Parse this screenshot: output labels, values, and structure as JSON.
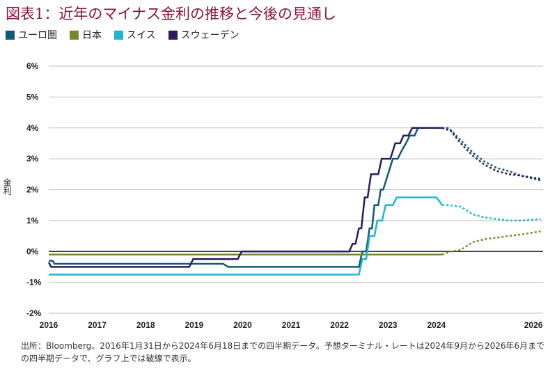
{
  "title": "図表1：近年のマイナス金利の推移と今後の見通し",
  "footnote": "出所：Bloomberg。2016年1月31日から2024年6月18日までの四半期データ。予想ターミナル・レートは2024年9月から2026年6月までの四半期データで、グラフ上では破線で表示。",
  "colors": {
    "eurozone": "#0f5a75",
    "japan": "#76892a",
    "swiss": "#1fb5d0",
    "sweden": "#2c1a5c",
    "grid": "#bfbfbf",
    "zero": "#333333"
  },
  "chart_data": {
    "type": "line",
    "ylabel": "金利",
    "xlim": [
      2016,
      2026.2
    ],
    "ylim": [
      -2,
      6
    ],
    "y_ticks": [
      -2,
      -1,
      0,
      1,
      2,
      3,
      4,
      5,
      6
    ],
    "y_tick_labels": [
      "-2%",
      "-1%",
      "0%",
      "1%",
      "2%",
      "3%",
      "4%",
      "5%",
      "6%"
    ],
    "x_ticks": [
      2016,
      2017,
      2018,
      2019,
      2020,
      2021,
      2022,
      2023,
      2024,
      2026
    ],
    "x_tick_labels": [
      "2016",
      "2017",
      "2018",
      "2019",
      "2020",
      "2021",
      "2022",
      "2023",
      "2024",
      "2026"
    ],
    "grid": true,
    "legend_position": "top-left",
    "series": [
      {
        "key": "eurozone",
        "name": "ユーロ圏",
        "actual": [
          [
            2016,
            -0.3
          ],
          [
            2016.08,
            -0.3
          ],
          [
            2016.12,
            -0.4
          ],
          [
            2019.6,
            -0.4
          ],
          [
            2019.7,
            -0.5
          ],
          [
            2022.4,
            -0.5
          ],
          [
            2022.47,
            0.0
          ],
          [
            2022.55,
            0.0
          ],
          [
            2022.62,
            0.75
          ],
          [
            2022.67,
            0.75
          ],
          [
            2022.72,
            1.5
          ],
          [
            2022.8,
            1.5
          ],
          [
            2022.85,
            2.0
          ],
          [
            2022.9,
            2.0
          ],
          [
            2023.0,
            2.5
          ],
          [
            2023.1,
            3.0
          ],
          [
            2023.2,
            3.0
          ],
          [
            2023.28,
            3.25
          ],
          [
            2023.37,
            3.5
          ],
          [
            2023.45,
            3.75
          ],
          [
            2023.55,
            3.75
          ],
          [
            2023.62,
            4.0
          ],
          [
            2024.12,
            4.0
          ]
        ],
        "forecast": [
          [
            2024.12,
            4.0
          ],
          [
            2024.25,
            4.0
          ],
          [
            2024.5,
            3.6
          ],
          [
            2024.75,
            3.2
          ],
          [
            2025.0,
            2.9
          ],
          [
            2025.25,
            2.7
          ],
          [
            2025.5,
            2.6
          ],
          [
            2025.75,
            2.45
          ],
          [
            2026.15,
            2.3
          ]
        ]
      },
      {
        "key": "japan",
        "name": "日本",
        "actual": [
          [
            2016,
            -0.1
          ],
          [
            2024.12,
            -0.1
          ]
        ],
        "forecast": [
          [
            2024.12,
            -0.1
          ],
          [
            2024.3,
            0.0
          ],
          [
            2024.5,
            0.05
          ],
          [
            2024.75,
            0.3
          ],
          [
            2025.0,
            0.4
          ],
          [
            2025.25,
            0.45
          ],
          [
            2025.5,
            0.5
          ],
          [
            2025.75,
            0.55
          ],
          [
            2026.15,
            0.65
          ]
        ]
      },
      {
        "key": "swiss",
        "name": "スイス",
        "actual": [
          [
            2016,
            -0.75
          ],
          [
            2022.4,
            -0.75
          ],
          [
            2022.47,
            -0.25
          ],
          [
            2022.55,
            -0.25
          ],
          [
            2022.62,
            0.5
          ],
          [
            2022.72,
            0.5
          ],
          [
            2022.78,
            1.0
          ],
          [
            2022.88,
            1.0
          ],
          [
            2022.95,
            1.5
          ],
          [
            2023.1,
            1.5
          ],
          [
            2023.18,
            1.75
          ],
          [
            2024.0,
            1.75
          ],
          [
            2024.12,
            1.5
          ]
        ],
        "forecast": [
          [
            2024.12,
            1.5
          ],
          [
            2024.25,
            1.5
          ],
          [
            2024.5,
            1.45
          ],
          [
            2024.75,
            1.2
          ],
          [
            2025.0,
            1.1
          ],
          [
            2025.25,
            1.05
          ],
          [
            2025.5,
            1.0
          ],
          [
            2025.75,
            1.0
          ],
          [
            2026.15,
            1.05
          ]
        ]
      },
      {
        "key": "sweden",
        "name": "スウェーデン",
        "actual": [
          [
            2016,
            -0.35
          ],
          [
            2016.05,
            -0.5
          ],
          [
            2018.9,
            -0.5
          ],
          [
            2018.98,
            -0.25
          ],
          [
            2019.9,
            -0.25
          ],
          [
            2019.98,
            0.0
          ],
          [
            2022.2,
            0.0
          ],
          [
            2022.27,
            0.25
          ],
          [
            2022.33,
            0.25
          ],
          [
            2022.4,
            0.75
          ],
          [
            2022.45,
            0.75
          ],
          [
            2022.52,
            1.75
          ],
          [
            2022.58,
            1.75
          ],
          [
            2022.65,
            2.5
          ],
          [
            2022.8,
            2.5
          ],
          [
            2022.87,
            3.0
          ],
          [
            2023.05,
            3.0
          ],
          [
            2023.15,
            3.5
          ],
          [
            2023.25,
            3.5
          ],
          [
            2023.32,
            3.75
          ],
          [
            2023.42,
            3.75
          ],
          [
            2023.5,
            4.0
          ],
          [
            2024.12,
            4.0
          ]
        ],
        "forecast": [
          [
            2024.12,
            4.0
          ],
          [
            2024.3,
            3.9
          ],
          [
            2024.5,
            3.5
          ],
          [
            2024.75,
            3.1
          ],
          [
            2025.0,
            2.8
          ],
          [
            2025.25,
            2.6
          ],
          [
            2025.5,
            2.5
          ],
          [
            2025.75,
            2.45
          ],
          [
            2026.15,
            2.35
          ]
        ]
      }
    ]
  }
}
